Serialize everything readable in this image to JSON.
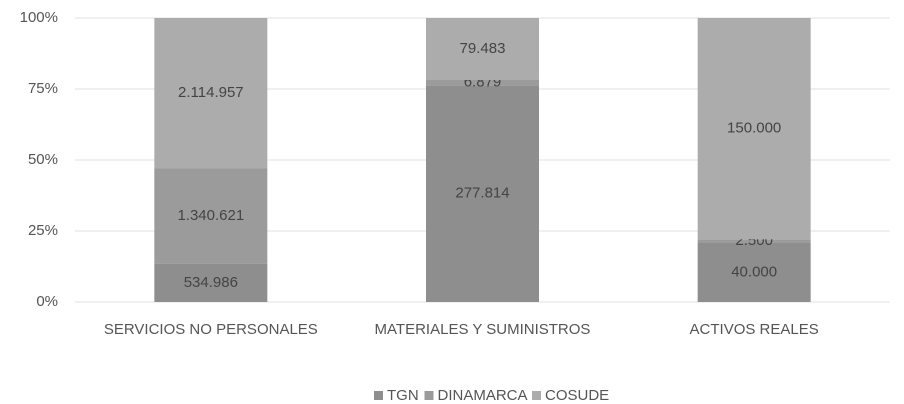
{
  "chart_data": {
    "type": "bar",
    "stacked": "percent",
    "categories": [
      "SERVICIOS NO PERSONALES",
      "MATERIALES Y SUMINISTROS",
      "ACTIVOS REALES"
    ],
    "series": [
      {
        "name": "TGN",
        "color": "#8e8e8e",
        "values": [
          534986,
          277814,
          40000
        ],
        "value_labels": [
          "534.986",
          "277.814",
          "40.000"
        ]
      },
      {
        "name": "DINAMARCA",
        "color": "#9b9b9b",
        "values": [
          1340621,
          6879,
          2500
        ],
        "value_labels": [
          "1.340.621",
          "6.879",
          "2.500"
        ]
      },
      {
        "name": "COSUDE",
        "color": "#acacac",
        "values": [
          2114957,
          79483,
          150000
        ],
        "value_labels": [
          "2.114.957",
          "79.483",
          "150.000"
        ]
      }
    ],
    "ylim": [
      0,
      100
    ],
    "yticks": [
      {
        "value": 0,
        "label": "0%"
      },
      {
        "value": 25,
        "label": "25%"
      },
      {
        "value": 50,
        "label": "50%"
      },
      {
        "value": 75,
        "label": "75%"
      },
      {
        "value": 100,
        "label": "100%"
      }
    ],
    "grid": true,
    "legend": "bottom"
  }
}
